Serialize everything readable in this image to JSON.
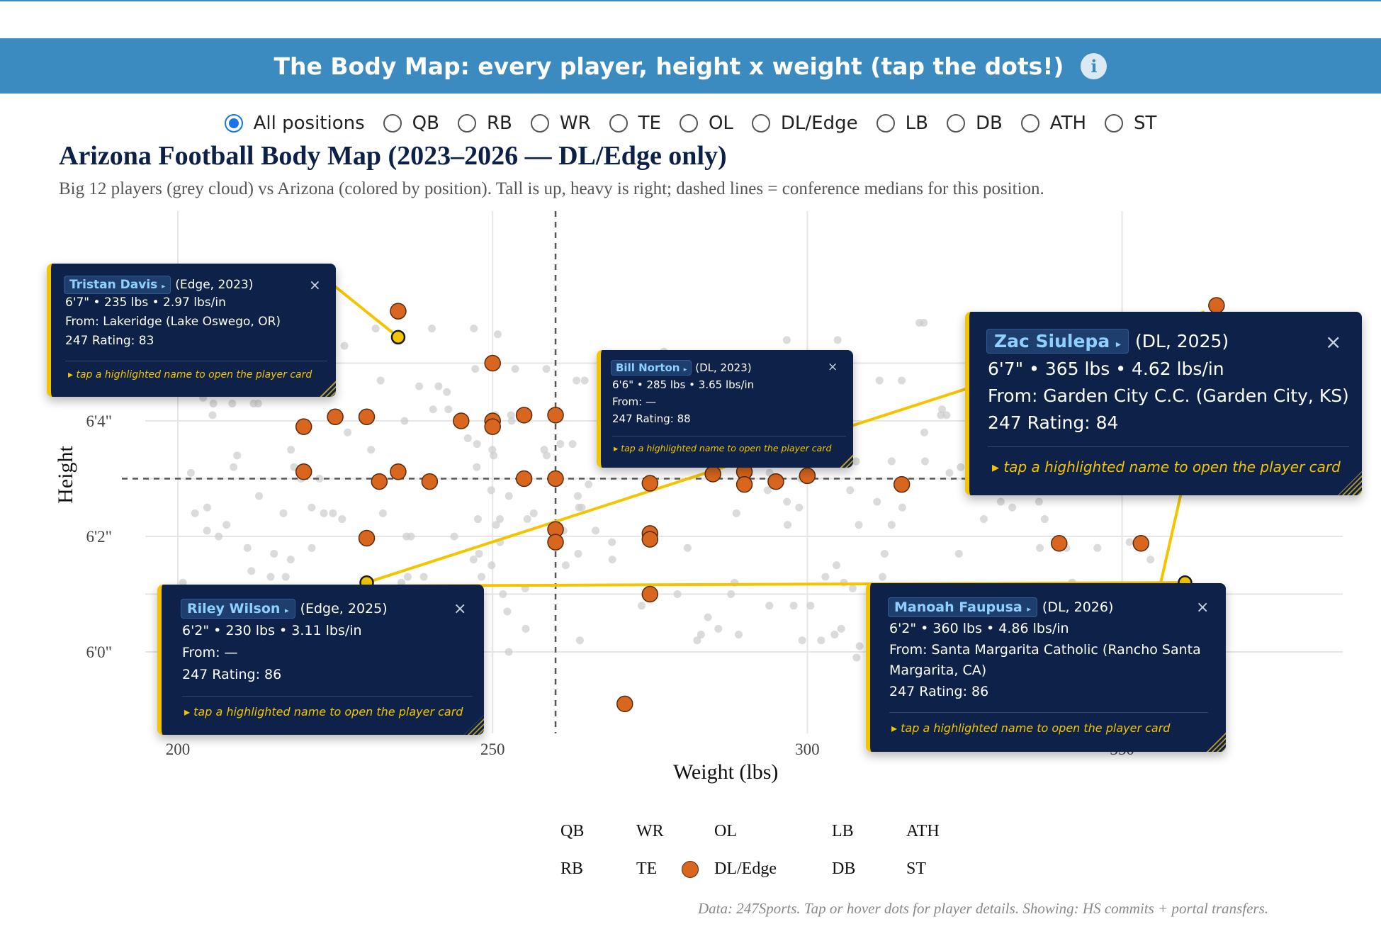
{
  "banner": {
    "title": "The Body Map: every player, height x weight (tap the dots!)"
  },
  "filters": [
    {
      "label": "All positions",
      "checked": true
    },
    {
      "label": "QB",
      "checked": false
    },
    {
      "label": "RB",
      "checked": false
    },
    {
      "label": "WR",
      "checked": false
    },
    {
      "label": "TE",
      "checked": false
    },
    {
      "label": "OL",
      "checked": false
    },
    {
      "label": "DL/Edge",
      "checked": false
    },
    {
      "label": "LB",
      "checked": false
    },
    {
      "label": "DB",
      "checked": false
    },
    {
      "label": "ATH",
      "checked": false
    },
    {
      "label": "ST",
      "checked": false
    }
  ],
  "chart_data": {
    "type": "scatter",
    "title": "Arizona Football Body Map (2023–2026 — DL/Edge only)",
    "subtitle": "Big 12 players (grey cloud) vs Arizona (colored by position). Tall is up, heavy is right; dashed lines = conference medians for this position.",
    "xlabel": "Weight (lbs)",
    "ylabel": "Height",
    "xlim": [
      200,
      350
    ],
    "ylim": [
      71.5,
      78.7
    ],
    "x_ticks": [
      {
        "value": 200,
        "label": "200"
      },
      {
        "value": 250,
        "label": "250"
      },
      {
        "value": 300,
        "label": "300"
      },
      {
        "value": 350,
        "label": "350"
      }
    ],
    "y_ticks": [
      {
        "value": 72,
        "label": "6'0\""
      },
      {
        "value": 74,
        "label": "6'2\""
      },
      {
        "value": 76,
        "label": "6'4\""
      }
    ],
    "median_weight": 260,
    "median_height": 75,
    "grid": true,
    "colors": {
      "dl_edge": "#d9661f",
      "highlight": "#f2c500",
      "cloud": "#cccccc",
      "median": "#555555"
    },
    "series": [
      {
        "name": "DL/Edge",
        "points": [
          {
            "x": 235,
            "y": 77.9
          },
          {
            "x": 250,
            "y": 77.0
          },
          {
            "x": 255,
            "y": 76.1
          },
          {
            "x": 285,
            "y": 77.0
          },
          {
            "x": 220,
            "y": 75.9
          },
          {
            "x": 225,
            "y": 76.07
          },
          {
            "x": 230,
            "y": 76.07
          },
          {
            "x": 245,
            "y": 76.0
          },
          {
            "x": 250,
            "y": 76.0
          },
          {
            "x": 250,
            "y": 75.9
          },
          {
            "x": 260,
            "y": 76.1
          },
          {
            "x": 220,
            "y": 75.12
          },
          {
            "x": 235,
            "y": 75.12
          },
          {
            "x": 232,
            "y": 74.95
          },
          {
            "x": 240,
            "y": 74.95
          },
          {
            "x": 255,
            "y": 75.0
          },
          {
            "x": 260,
            "y": 75.0
          },
          {
            "x": 275,
            "y": 74.92
          },
          {
            "x": 285,
            "y": 75.08
          },
          {
            "x": 290,
            "y": 75.12
          },
          {
            "x": 290,
            "y": 74.9
          },
          {
            "x": 295,
            "y": 74.95
          },
          {
            "x": 300,
            "y": 75.05
          },
          {
            "x": 315,
            "y": 74.9
          },
          {
            "x": 260,
            "y": 74.12
          },
          {
            "x": 260,
            "y": 73.9
          },
          {
            "x": 275,
            "y": 74.05
          },
          {
            "x": 275,
            "y": 73.95
          },
          {
            "x": 230,
            "y": 73.97
          },
          {
            "x": 275,
            "y": 73.0
          },
          {
            "x": 271,
            "y": 71.1
          },
          {
            "x": 340,
            "y": 73.88
          },
          {
            "x": 353,
            "y": 73.88
          },
          {
            "x": 365,
            "y": 78.0
          }
        ]
      }
    ],
    "highlighted": [
      {
        "x": 235,
        "y": 77.45
      },
      {
        "x": 285,
        "y": 76.65
      },
      {
        "x": 230,
        "y": 73.2
      },
      {
        "x": 360,
        "y": 73.2
      },
      {
        "x": 365,
        "y": 77.45
      }
    ],
    "legend": {
      "placement": "bottom",
      "entries": [
        "QB",
        "WR",
        "OL",
        "LB",
        "ATH",
        "RB",
        "TE",
        "DL/Edge",
        "DB",
        "ST"
      ],
      "marked": "DL/Edge"
    }
  },
  "tooltips": [
    {
      "name": "Tristan Davis",
      "meta": "(Edge, 2023)",
      "stats": "6'7\" • 235 lbs • 2.97 lbs/in",
      "from": "From: Lakeridge (Lake Oswego, OR)",
      "rating": "247 Rating: 83",
      "hint": "tap a highlighted name to open the player card"
    },
    {
      "name": "Bill Norton",
      "meta": "(DL, 2023)",
      "stats": "6'6\" • 285 lbs • 3.65 lbs/in",
      "from": "From: —",
      "rating": "247 Rating: 88",
      "hint": "tap a highlighted name to open the player card"
    },
    {
      "name": "Zac Siulepa",
      "meta": "(DL, 2025)",
      "stats": "6'7\" • 365 lbs • 4.62 lbs/in",
      "from": "From: Garden City C.C. (Garden City, KS)",
      "rating": "247 Rating: 84",
      "hint": "tap a highlighted name to open the player card"
    },
    {
      "name": "Riley Wilson",
      "meta": "(Edge, 2025)",
      "stats": "6'2\" • 230 lbs • 3.11 lbs/in",
      "from": "From: —",
      "rating": "247 Rating: 86",
      "hint": "tap a highlighted name to open the player card"
    },
    {
      "name": "Manoah Faupusa",
      "meta": "(DL, 2026)",
      "stats": "6'2\" • 360 lbs • 4.86 lbs/in",
      "from": "From: Santa Margarita Catholic (Rancho Santa",
      "from2": "Margarita, CA)",
      "rating": "247 Rating: 86",
      "hint": "tap a highlighted name to open the player card"
    }
  ],
  "footer": "Data: 247Sports. Tap or hover dots for player details. Showing: HS commits + portal transfers.",
  "icons": {
    "info": "info-icon",
    "close": "close-icon",
    "chip_arrow": "play-arrow-icon",
    "hint_arrow": "play-arrow-icon"
  }
}
